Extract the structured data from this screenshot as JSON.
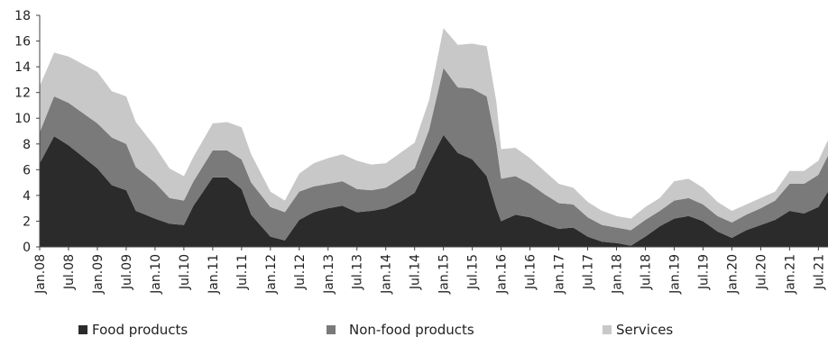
{
  "chart_data": {
    "type": "area",
    "stacked": true,
    "title": "",
    "xlabel": "",
    "ylabel": "",
    "ylim": [
      0,
      18
    ],
    "yticks": [
      0,
      2,
      4,
      6,
      8,
      10,
      12,
      14,
      16,
      18
    ],
    "grid": "none",
    "legend": "bottom",
    "x_start": "Jan.08",
    "x_end": "Sep.21",
    "x_tick_labels": [
      "Jan.08",
      "Jul.08",
      "Jan.09",
      "Jul.09",
      "Jan.10",
      "Jul.10",
      "Jan.11",
      "Jul.11",
      "Jan.12",
      "Jul.12",
      "Jan.13",
      "Jul.13",
      "Jan.14",
      "Jul.14",
      "Jan.15",
      "Jul.15",
      "Jan.16",
      "Jul.16",
      "Jan.17",
      "Jul.17",
      "Jan.18",
      "Jul.18",
      "Jan.19",
      "Jul.19",
      "Jan.20",
      "Jul.20",
      "Jan.21",
      "Jul.21"
    ],
    "series": [
      {
        "name": "Food products",
        "color": "#2b2b2b",
        "points": [
          [
            "Jan.08",
            6.5
          ],
          [
            "Apr.08",
            8.6
          ],
          [
            "Jul.08",
            7.9
          ],
          [
            "Jan.09",
            6.1
          ],
          [
            "Apr.09",
            4.8
          ],
          [
            "Jul.09",
            4.4
          ],
          [
            "Sep.09",
            2.8
          ],
          [
            "Jan.10",
            2.2
          ],
          [
            "Apr.10",
            1.8
          ],
          [
            "Jul.10",
            1.7
          ],
          [
            "Sep.10",
            3.2
          ],
          [
            "Jan.11",
            5.4
          ],
          [
            "Apr.11",
            5.4
          ],
          [
            "Jul.11",
            4.5
          ],
          [
            "Sep.11",
            2.5
          ],
          [
            "Jan.12",
            0.8
          ],
          [
            "Apr.12",
            0.5
          ],
          [
            "Jul.12",
            2.1
          ],
          [
            "Oct.12",
            2.7
          ],
          [
            "Jan.13",
            3.0
          ],
          [
            "Apr.13",
            3.2
          ],
          [
            "Jul.13",
            2.7
          ],
          [
            "Oct.13",
            2.8
          ],
          [
            "Jan.14",
            3.0
          ],
          [
            "Apr.14",
            3.5
          ],
          [
            "Jul.14",
            4.2
          ],
          [
            "Oct.14",
            6.5
          ],
          [
            "Jan.15",
            8.7
          ],
          [
            "Apr.15",
            7.3
          ],
          [
            "Jul.15",
            6.8
          ],
          [
            "Oct.15",
            5.5
          ],
          [
            "Dec.15",
            3.0
          ],
          [
            "Jan.16",
            2.0
          ],
          [
            "Apr.16",
            2.5
          ],
          [
            "Jul.16",
            2.3
          ],
          [
            "Oct.16",
            1.8
          ],
          [
            "Jan.17",
            1.4
          ],
          [
            "Apr.17",
            1.5
          ],
          [
            "Jul.17",
            0.8
          ],
          [
            "Oct.17",
            0.4
          ],
          [
            "Jan.18",
            0.3
          ],
          [
            "Apr.18",
            0.1
          ],
          [
            "Jul.18",
            0.8
          ],
          [
            "Oct.18",
            1.6
          ],
          [
            "Jan.19",
            2.2
          ],
          [
            "Apr.19",
            2.4
          ],
          [
            "Jul.19",
            2.0
          ],
          [
            "Oct.19",
            1.2
          ],
          [
            "Jan.20",
            0.7
          ],
          [
            "Apr.20",
            1.3
          ],
          [
            "Jul.20",
            1.7
          ],
          [
            "Oct.20",
            2.1
          ],
          [
            "Jan.21",
            2.8
          ],
          [
            "Apr.21",
            2.6
          ],
          [
            "Jul.21",
            3.1
          ],
          [
            "Sep.21",
            4.3
          ]
        ]
      },
      {
        "name": "Non-food products",
        "color": "#7a7a7a",
        "points": [
          [
            "Jan.08",
            2.4
          ],
          [
            "Apr.08",
            3.1
          ],
          [
            "Jul.08",
            3.3
          ],
          [
            "Jan.09",
            3.5
          ],
          [
            "Apr.09",
            3.7
          ],
          [
            "Jul.09",
            3.6
          ],
          [
            "Sep.09",
            3.4
          ],
          [
            "Jan.10",
            2.8
          ],
          [
            "Apr.10",
            2.0
          ],
          [
            "Jul.10",
            1.9
          ],
          [
            "Sep.10",
            1.9
          ],
          [
            "Jan.11",
            2.1
          ],
          [
            "Apr.11",
            2.1
          ],
          [
            "Jul.11",
            2.3
          ],
          [
            "Sep.11",
            2.5
          ],
          [
            "Jan.12",
            2.3
          ],
          [
            "Apr.12",
            2.2
          ],
          [
            "Jul.12",
            2.2
          ],
          [
            "Oct.12",
            2.0
          ],
          [
            "Jan.13",
            1.9
          ],
          [
            "Apr.13",
            1.9
          ],
          [
            "Jul.13",
            1.8
          ],
          [
            "Oct.13",
            1.6
          ],
          [
            "Jan.14",
            1.6
          ],
          [
            "Apr.14",
            1.8
          ],
          [
            "Jul.14",
            1.9
          ],
          [
            "Oct.14",
            2.6
          ],
          [
            "Jan.15",
            5.2
          ],
          [
            "Apr.15",
            5.1
          ],
          [
            "Jul.15",
            5.5
          ],
          [
            "Oct.15",
            6.2
          ],
          [
            "Dec.15",
            5.0
          ],
          [
            "Jan.16",
            3.3
          ],
          [
            "Apr.16",
            3.0
          ],
          [
            "Jul.16",
            2.6
          ],
          [
            "Oct.16",
            2.3
          ],
          [
            "Jan.17",
            2.0
          ],
          [
            "Apr.17",
            1.8
          ],
          [
            "Jul.17",
            1.5
          ],
          [
            "Oct.17",
            1.3
          ],
          [
            "Jan.18",
            1.2
          ],
          [
            "Apr.18",
            1.2
          ],
          [
            "Jul.18",
            1.3
          ],
          [
            "Oct.18",
            1.2
          ],
          [
            "Jan.19",
            1.4
          ],
          [
            "Apr.19",
            1.4
          ],
          [
            "Jul.19",
            1.3
          ],
          [
            "Oct.19",
            1.2
          ],
          [
            "Jan.20",
            1.2
          ],
          [
            "Apr.20",
            1.2
          ],
          [
            "Jul.20",
            1.3
          ],
          [
            "Oct.20",
            1.5
          ],
          [
            "Jan.21",
            2.1
          ],
          [
            "Apr.21",
            2.3
          ],
          [
            "Jul.21",
            2.5
          ],
          [
            "Sep.21",
            2.8
          ]
        ]
      },
      {
        "name": "Services",
        "color": "#c8c8c8",
        "points": [
          [
            "Jan.08",
            3.6
          ],
          [
            "Apr.08",
            3.4
          ],
          [
            "Jul.08",
            3.6
          ],
          [
            "Jan.09",
            4.0
          ],
          [
            "Apr.09",
            3.6
          ],
          [
            "Jul.09",
            3.7
          ],
          [
            "Sep.09",
            3.5
          ],
          [
            "Jan.10",
            2.8
          ],
          [
            "Apr.10",
            2.3
          ],
          [
            "Jul.10",
            1.9
          ],
          [
            "Sep.10",
            1.9
          ],
          [
            "Jan.11",
            2.1
          ],
          [
            "Apr.11",
            2.2
          ],
          [
            "Jul.11",
            2.5
          ],
          [
            "Sep.11",
            2.2
          ],
          [
            "Jan.12",
            1.2
          ],
          [
            "Apr.12",
            0.9
          ],
          [
            "Jul.12",
            1.4
          ],
          [
            "Oct.12",
            1.8
          ],
          [
            "Jan.13",
            2.0
          ],
          [
            "Apr.13",
            2.1
          ],
          [
            "Jul.13",
            2.2
          ],
          [
            "Oct.13",
            2.0
          ],
          [
            "Jan.14",
            1.9
          ],
          [
            "Apr.14",
            2.0
          ],
          [
            "Jul.14",
            2.0
          ],
          [
            "Oct.14",
            2.3
          ],
          [
            "Jan.15",
            3.1
          ],
          [
            "Apr.15",
            3.3
          ],
          [
            "Jul.15",
            3.5
          ],
          [
            "Oct.15",
            3.9
          ],
          [
            "Dec.15",
            3.3
          ],
          [
            "Jan.16",
            2.3
          ],
          [
            "Apr.16",
            2.2
          ],
          [
            "Jul.16",
            2.0
          ],
          [
            "Oct.16",
            1.8
          ],
          [
            "Jan.17",
            1.5
          ],
          [
            "Apr.17",
            1.3
          ],
          [
            "Jul.17",
            1.2
          ],
          [
            "Oct.17",
            1.1
          ],
          [
            "Jan.18",
            0.9
          ],
          [
            "Apr.18",
            0.9
          ],
          [
            "Jul.18",
            1.0
          ],
          [
            "Oct.18",
            1.0
          ],
          [
            "Jan.19",
            1.5
          ],
          [
            "Apr.19",
            1.5
          ],
          [
            "Jul.19",
            1.3
          ],
          [
            "Oct.19",
            1.1
          ],
          [
            "Jan.20",
            0.9
          ],
          [
            "Apr.20",
            0.8
          ],
          [
            "Jul.20",
            0.8
          ],
          [
            "Oct.20",
            0.7
          ],
          [
            "Jan.21",
            1.0
          ],
          [
            "Apr.21",
            1.0
          ],
          [
            "Jul.21",
            1.1
          ],
          [
            "Sep.21",
            1.2
          ]
        ]
      }
    ]
  }
}
